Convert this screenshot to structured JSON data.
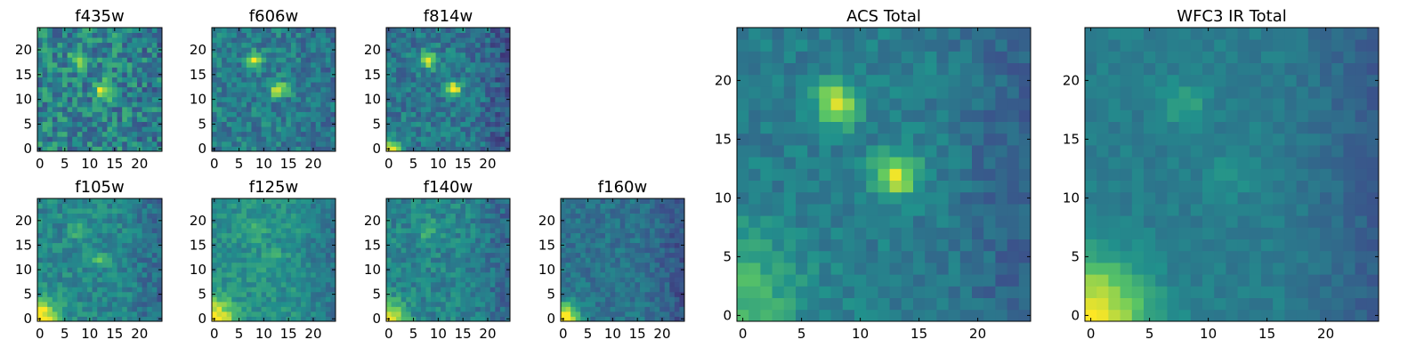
{
  "figure": {
    "colormap": "viridis",
    "colormap_stops": [
      "#440154",
      "#3b528b",
      "#21918c",
      "#5ec962",
      "#fde725"
    ]
  },
  "chart_data": [
    {
      "type": "heatmap",
      "key": "f435w",
      "title": "f435w",
      "x_range": [
        0,
        24
      ],
      "y_range": [
        0,
        24
      ],
      "x_ticks": [
        0,
        5,
        10,
        15,
        20
      ],
      "y_ticks": [
        0,
        5,
        10,
        15,
        20
      ],
      "grid": false,
      "noise": 0.2,
      "background": 0.45,
      "sources": [
        {
          "x": 8,
          "y": 18,
          "peak": 0.5,
          "sigma": 1.2
        },
        {
          "x": 13,
          "y": 12,
          "peak": 0.5,
          "sigma": 1.2
        }
      ],
      "gradient": null
    },
    {
      "type": "heatmap",
      "key": "f606w",
      "title": "f606w",
      "x_range": [
        0,
        24
      ],
      "y_range": [
        0,
        24
      ],
      "x_ticks": [
        0,
        5,
        10,
        15,
        20
      ],
      "y_ticks": [
        0,
        5,
        10,
        15,
        20
      ],
      "grid": false,
      "noise": 0.14,
      "background": 0.42,
      "sources": [
        {
          "x": 8,
          "y": 18,
          "peak": 0.58,
          "sigma": 1.1
        },
        {
          "x": 13,
          "y": 12,
          "peak": 0.58,
          "sigma": 1.1
        }
      ],
      "gradient": null
    },
    {
      "type": "heatmap",
      "key": "f814w",
      "title": "f814w",
      "x_range": [
        0,
        24
      ],
      "y_range": [
        0,
        24
      ],
      "x_ticks": [
        0,
        5,
        10,
        15,
        20
      ],
      "y_ticks": [
        0,
        5,
        10,
        15,
        20
      ],
      "grid": false,
      "noise": 0.14,
      "background": 0.4,
      "sources": [
        {
          "x": 8,
          "y": 18,
          "peak": 0.6,
          "sigma": 1.1
        },
        {
          "x": 13,
          "y": 12,
          "peak": 0.6,
          "sigma": 1.1
        }
      ],
      "gradient": {
        "x": 0,
        "y": 0,
        "peak": 0.6,
        "sigma": 1.6
      }
    },
    {
      "type": "heatmap",
      "key": "f105w",
      "title": "f105w",
      "x_range": [
        0,
        24
      ],
      "y_range": [
        0,
        24
      ],
      "x_ticks": [
        0,
        5,
        10,
        15,
        20
      ],
      "y_ticks": [
        0,
        5,
        10,
        15,
        20
      ],
      "grid": false,
      "noise": 0.11,
      "background": 0.46,
      "sources": [
        {
          "x": 8,
          "y": 18,
          "peak": 0.25,
          "sigma": 1.3
        },
        {
          "x": 12,
          "y": 12,
          "peak": 0.22,
          "sigma": 1.1
        }
      ],
      "gradient": {
        "x": 0,
        "y": 0,
        "peak": 0.65,
        "sigma": 2.6
      }
    },
    {
      "type": "heatmap",
      "key": "f125w",
      "title": "f125w",
      "x_range": [
        0,
        24
      ],
      "y_range": [
        0,
        24
      ],
      "x_ticks": [
        0,
        5,
        10,
        15,
        20
      ],
      "y_ticks": [
        0,
        5,
        10,
        15,
        20
      ],
      "grid": false,
      "noise": 0.1,
      "background": 0.5,
      "sources": [
        {
          "x": 8,
          "y": 18,
          "peak": 0.18,
          "sigma": 1.5
        },
        {
          "x": 12,
          "y": 12,
          "peak": 0.12,
          "sigma": 1.3
        }
      ],
      "gradient": {
        "x": 0,
        "y": 0,
        "peak": 0.55,
        "sigma": 2.8
      }
    },
    {
      "type": "heatmap",
      "key": "f140w",
      "title": "f140w",
      "x_range": [
        0,
        24
      ],
      "y_range": [
        0,
        24
      ],
      "x_ticks": [
        0,
        5,
        10,
        15,
        20
      ],
      "y_ticks": [
        0,
        5,
        10,
        15,
        20
      ],
      "grid": false,
      "noise": 0.11,
      "background": 0.45,
      "sources": [
        {
          "x": 8,
          "y": 18,
          "peak": 0.18,
          "sigma": 1.5
        }
      ],
      "gradient": {
        "x": 0,
        "y": 0,
        "peak": 0.6,
        "sigma": 2.4
      }
    },
    {
      "type": "heatmap",
      "key": "f160w",
      "title": "f160w",
      "x_range": [
        0,
        24
      ],
      "y_range": [
        0,
        24
      ],
      "x_ticks": [
        0,
        5,
        10,
        15,
        20
      ],
      "y_ticks": [
        0,
        5,
        10,
        15,
        20
      ],
      "grid": false,
      "noise": 0.09,
      "background": 0.38,
      "sources": [],
      "gradient": {
        "x": 0,
        "y": 0,
        "peak": 0.7,
        "sigma": 2.2
      }
    },
    {
      "type": "heatmap",
      "key": "acs_total",
      "title": "ACS Total",
      "x_range": [
        0,
        24
      ],
      "y_range": [
        0,
        24
      ],
      "x_ticks": [
        0,
        5,
        10,
        15,
        20
      ],
      "y_ticks": [
        0,
        5,
        10,
        15,
        20
      ],
      "grid": false,
      "noise": 0.08,
      "background": 0.42,
      "sources": [
        {
          "x": 8,
          "y": 18,
          "peak": 0.52,
          "sigma": 1.3
        },
        {
          "x": 13,
          "y": 12,
          "peak": 0.52,
          "sigma": 1.3
        }
      ],
      "gradient": {
        "x": 0,
        "y": 2,
        "peak": 0.25,
        "sigma": 3.5
      }
    },
    {
      "type": "heatmap",
      "key": "wfc3_ir_total",
      "title": "WFC3 IR Total",
      "x_range": [
        0,
        24
      ],
      "y_range": [
        0,
        24
      ],
      "x_ticks": [
        0,
        5,
        10,
        15,
        20
      ],
      "y_ticks": [
        0,
        5,
        10,
        15,
        20
      ],
      "grid": false,
      "noise": 0.05,
      "background": 0.42,
      "sources": [
        {
          "x": 8,
          "y": 18,
          "peak": 0.14,
          "sigma": 1.4
        },
        {
          "x": 12,
          "y": 12,
          "peak": 0.12,
          "sigma": 1.1
        }
      ],
      "gradient": {
        "x": 0,
        "y": 0,
        "peak": 0.6,
        "sigma": 3.2
      }
    }
  ]
}
